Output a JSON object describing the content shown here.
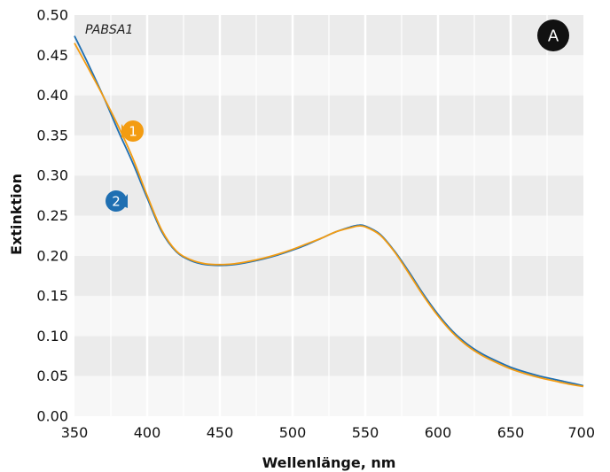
{
  "chart_data": {
    "type": "line",
    "inset_label": "PABSA1",
    "panel_badge": "A",
    "xlabel": "Wellenlänge, nm",
    "ylabel": "Extinktion",
    "xlim": [
      350,
      700
    ],
    "ylim": [
      0,
      0.5
    ],
    "x_ticks": [
      350,
      400,
      450,
      500,
      550,
      600,
      650,
      700
    ],
    "x_tick_labels": [
      "350",
      "400",
      "450",
      "500",
      "550",
      "600",
      "650",
      "700"
    ],
    "y_ticks": [
      0,
      0.05,
      0.1,
      0.15,
      0.2,
      0.25,
      0.3,
      0.35,
      0.4,
      0.45,
      0.5
    ],
    "y_tick_labels": [
      "0.00",
      "0.05",
      "0.10",
      "0.15",
      "0.20",
      "0.25",
      "0.30",
      "0.35",
      "0.40",
      "0.45",
      "0.50"
    ],
    "grid": true,
    "series": [
      {
        "marker_label": "1",
        "color": "#f39c12",
        "x": [
          350,
          360,
          370,
          380,
          390,
          400,
          410,
          420,
          430,
          440,
          450,
          460,
          470,
          480,
          490,
          500,
          510,
          520,
          530,
          540,
          545,
          550,
          560,
          570,
          580,
          590,
          600,
          610,
          620,
          630,
          640,
          650,
          660,
          670,
          680,
          690,
          700
        ],
        "y": [
          0.465,
          0.432,
          0.398,
          0.362,
          0.322,
          0.275,
          0.232,
          0.206,
          0.195,
          0.19,
          0.189,
          0.19,
          0.193,
          0.197,
          0.202,
          0.208,
          0.215,
          0.222,
          0.23,
          0.235,
          0.237,
          0.236,
          0.226,
          0.205,
          0.178,
          0.15,
          0.125,
          0.104,
          0.088,
          0.076,
          0.067,
          0.059,
          0.053,
          0.048,
          0.044,
          0.04,
          0.037
        ]
      },
      {
        "marker_label": "2",
        "color": "#1f6fb2",
        "x": [
          350,
          360,
          370,
          380,
          390,
          400,
          410,
          420,
          430,
          440,
          450,
          460,
          470,
          480,
          490,
          500,
          510,
          520,
          530,
          540,
          545,
          550,
          560,
          570,
          580,
          590,
          600,
          610,
          620,
          630,
          640,
          650,
          660,
          670,
          680,
          690,
          700
        ],
        "y": [
          0.474,
          0.437,
          0.398,
          0.356,
          0.316,
          0.272,
          0.23,
          0.205,
          0.194,
          0.189,
          0.188,
          0.189,
          0.192,
          0.196,
          0.201,
          0.207,
          0.214,
          0.222,
          0.23,
          0.236,
          0.238,
          0.237,
          0.227,
          0.206,
          0.18,
          0.152,
          0.127,
          0.106,
          0.09,
          0.078,
          0.069,
          0.061,
          0.055,
          0.05,
          0.046,
          0.042,
          0.038
        ]
      }
    ]
  }
}
